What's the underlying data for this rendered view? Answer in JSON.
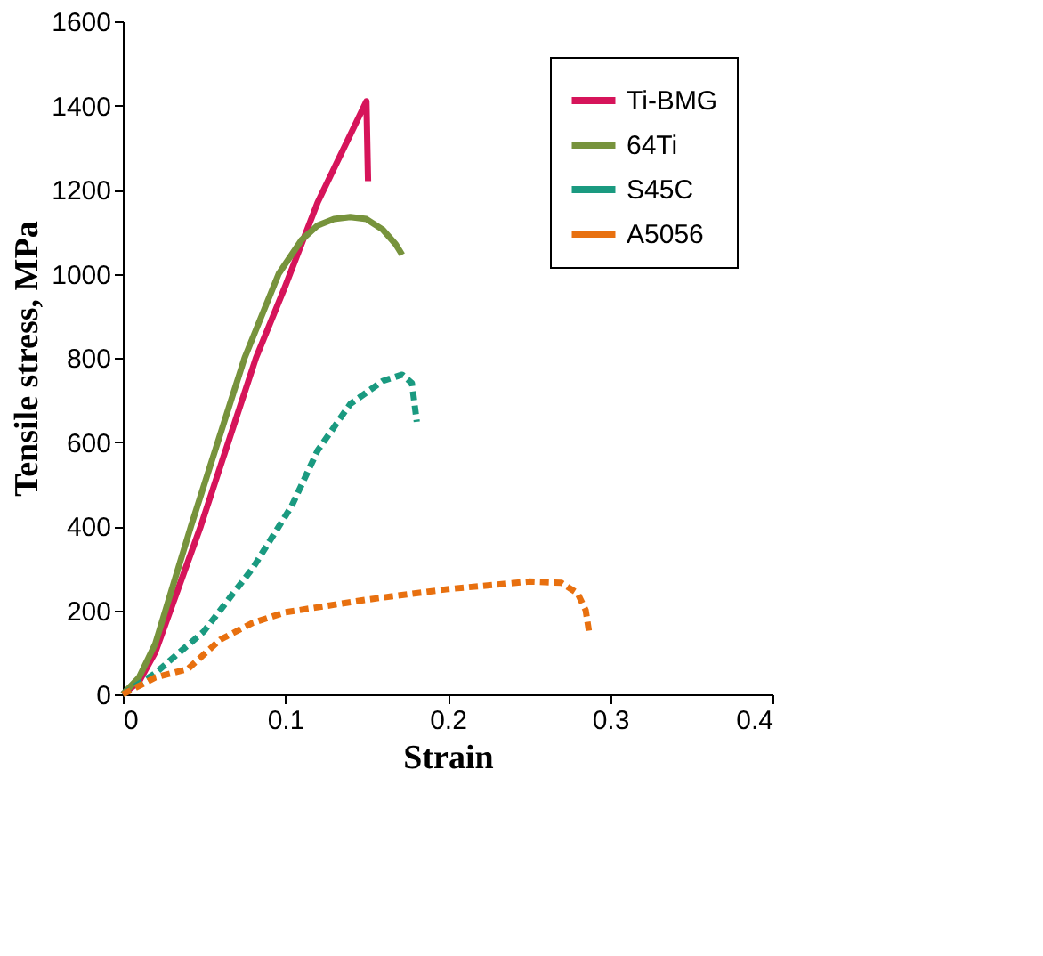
{
  "chart_data": {
    "type": "line",
    "xlabel": "Strain",
    "ylabel": "Tensile stress, MPa",
    "xlim": [
      0,
      0.4
    ],
    "xticks": [
      0,
      0.1,
      0.2,
      0.3,
      0.4
    ],
    "ylim": [
      0,
      1600
    ],
    "yticks": [
      0,
      200,
      400,
      600,
      800,
      1000,
      1200,
      1400,
      1600
    ],
    "grid": false,
    "legend": "top right",
    "marker": "none",
    "series": [
      {
        "name": "Ti-BMG",
        "color": "#d6145a",
        "line_style": "solid",
        "x": [
          0,
          0.01,
          0.02,
          0.048,
          0.082,
          0.1,
          0.12,
          0.15,
          0.151
        ],
        "values": [
          0,
          30,
          100,
          400,
          800,
          970,
          1170,
          1410,
          1220
        ]
      },
      {
        "name": "64Ti",
        "color": "#77933c",
        "line_style": "solid",
        "x": [
          0,
          0.01,
          0.02,
          0.042,
          0.075,
          0.096,
          0.11,
          0.12,
          0.13,
          0.14,
          0.15,
          0.16,
          0.168,
          0.172
        ],
        "values": [
          0,
          40,
          120,
          400,
          800,
          1000,
          1080,
          1115,
          1130,
          1135,
          1130,
          1105,
          1070,
          1045
        ]
      },
      {
        "name": "S45C",
        "color": "#1a9a80",
        "line_style": "dashed",
        "x": [
          0,
          0.02,
          0.05,
          0.08,
          0.104,
          0.12,
          0.14,
          0.16,
          0.172,
          0.178,
          0.181
        ],
        "values": [
          0,
          50,
          150,
          300,
          448,
          580,
          690,
          745,
          760,
          740,
          648
        ]
      },
      {
        "name": "A5056",
        "color": "#e8700f",
        "line_style": "dashed",
        "x": [
          0,
          0.02,
          0.04,
          0.06,
          0.08,
          0.1,
          0.15,
          0.2,
          0.25,
          0.27,
          0.28,
          0.285,
          0.287
        ],
        "values": [
          0,
          40,
          60,
          130,
          170,
          195,
          225,
          250,
          268,
          265,
          240,
          200,
          150
        ]
      }
    ]
  }
}
